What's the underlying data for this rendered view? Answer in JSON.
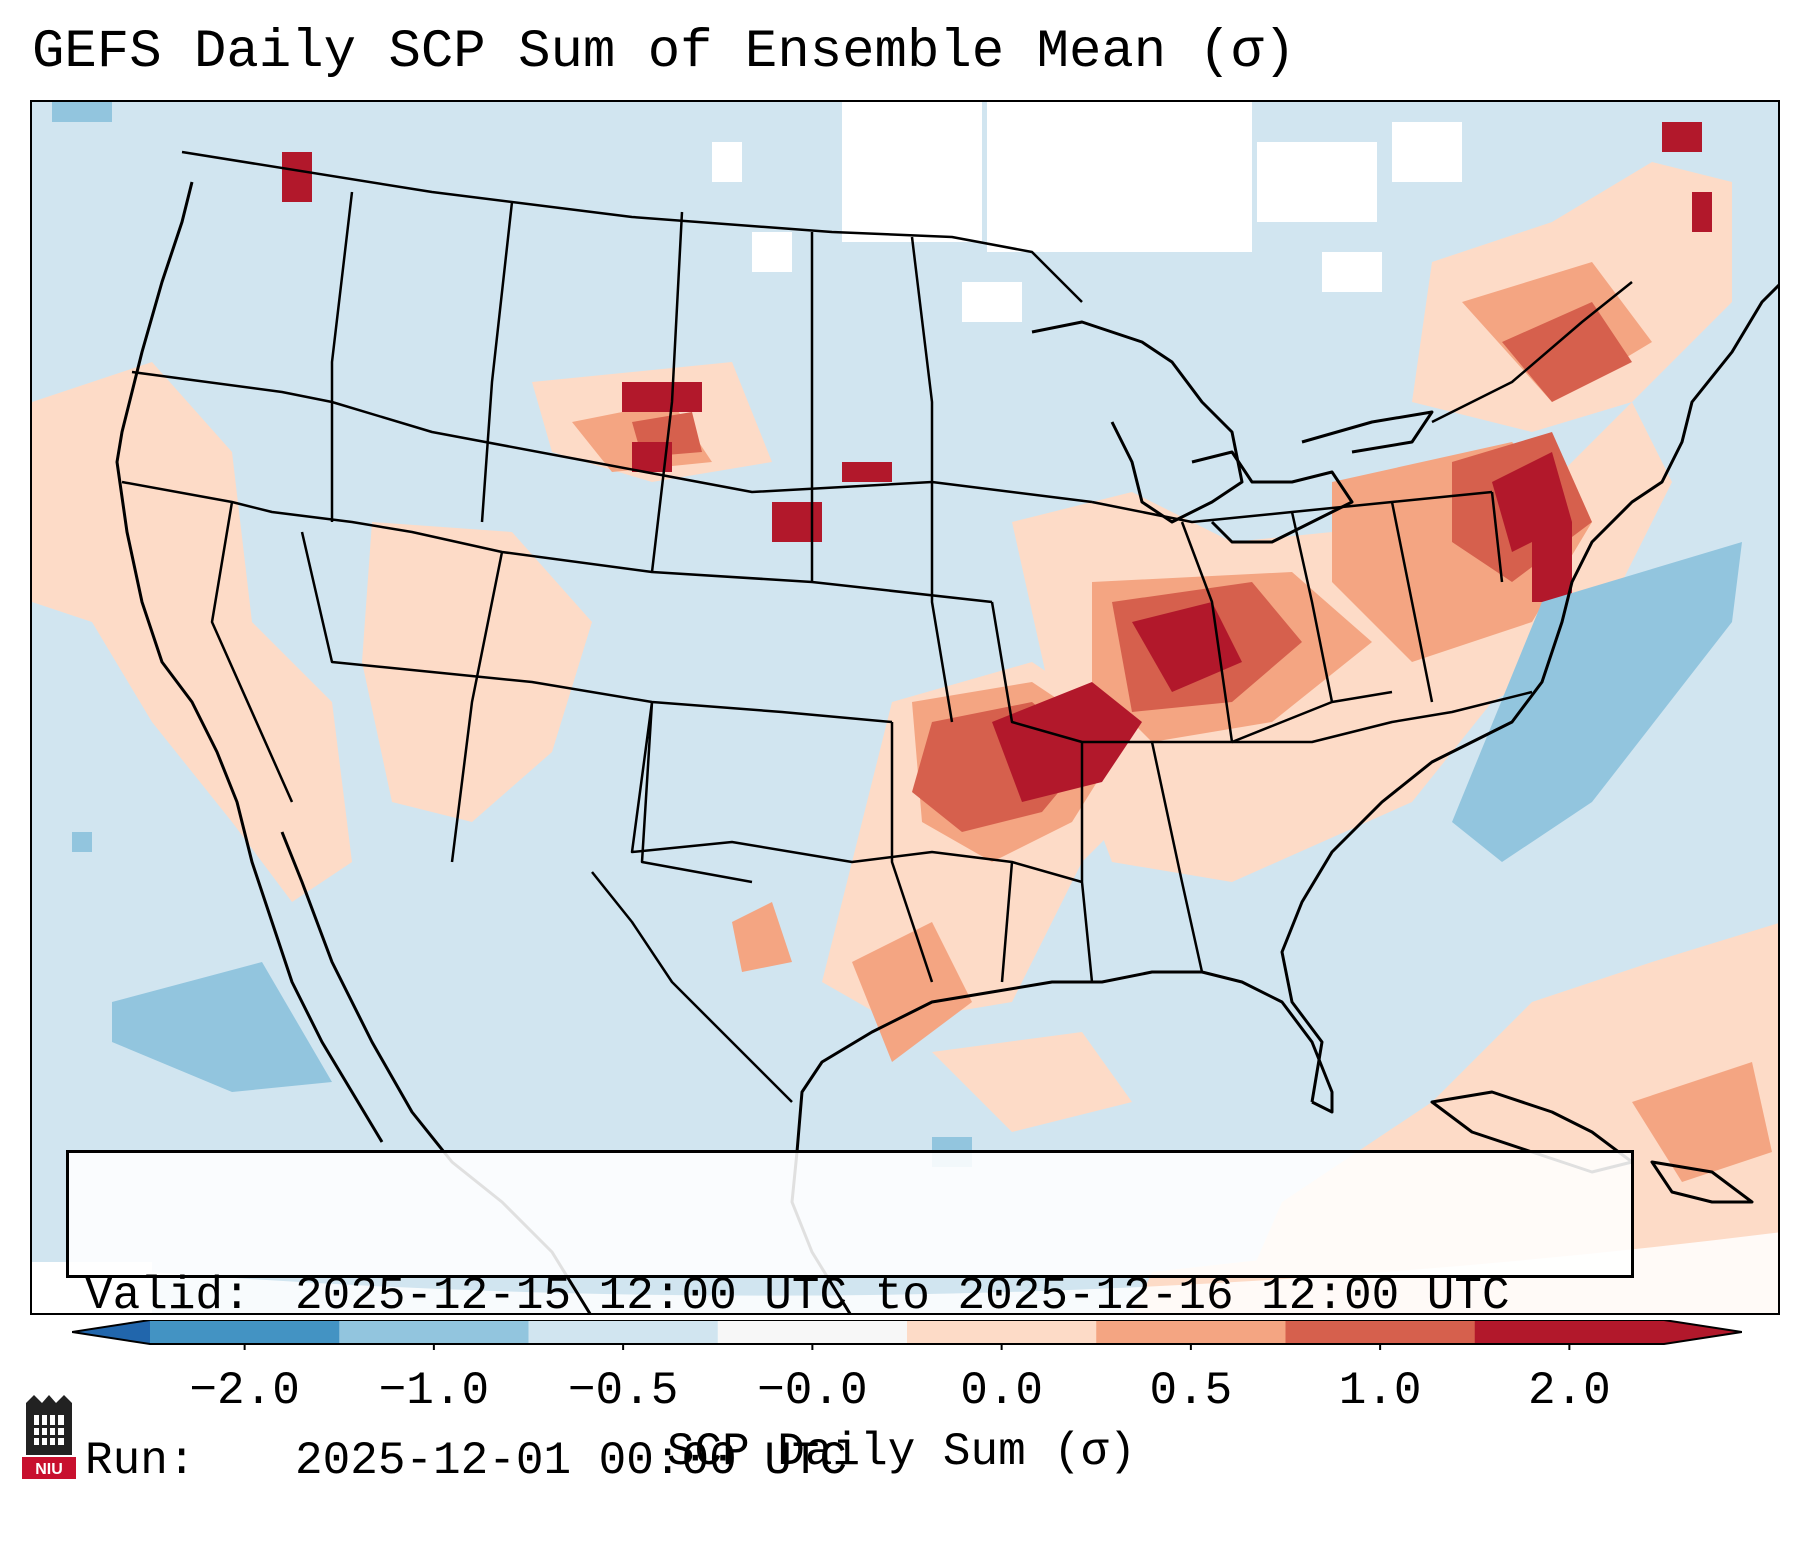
{
  "title": "GEFS Daily SCP Sum of Ensemble Mean (σ)",
  "info": {
    "valid_label": "Valid:",
    "valid_value": "2025-12-15 12:00 UTC to 2025-12-16 12:00 UTC",
    "run_label": "Run:",
    "run_value": "2025-12-01 00:00 UTC"
  },
  "colorbar": {
    "label": "SCP Daily Sum (σ)",
    "ticks": [
      "−2.0",
      "−1.0",
      "−0.5",
      "−0.0",
      "0.0",
      "0.5",
      "1.0",
      "2.0"
    ],
    "bin_colors": [
      "#4393c3",
      "#92c5de",
      "#d1e5f0",
      "#f7f7f7",
      "#fddbc7",
      "#f4a582",
      "#d6604d",
      "#b2182b"
    ],
    "extend_low_color": "#2166ac",
    "extend_high_color": "#b2182b"
  },
  "map": {
    "region": "Contiguous United States",
    "background_color": "#d1e5f0",
    "max_anomaly_area": "Mid-Mississippi Valley / Ohio Valley into the Northeast"
  },
  "logo": {
    "text": "NIU",
    "color": "#c8102e"
  }
}
